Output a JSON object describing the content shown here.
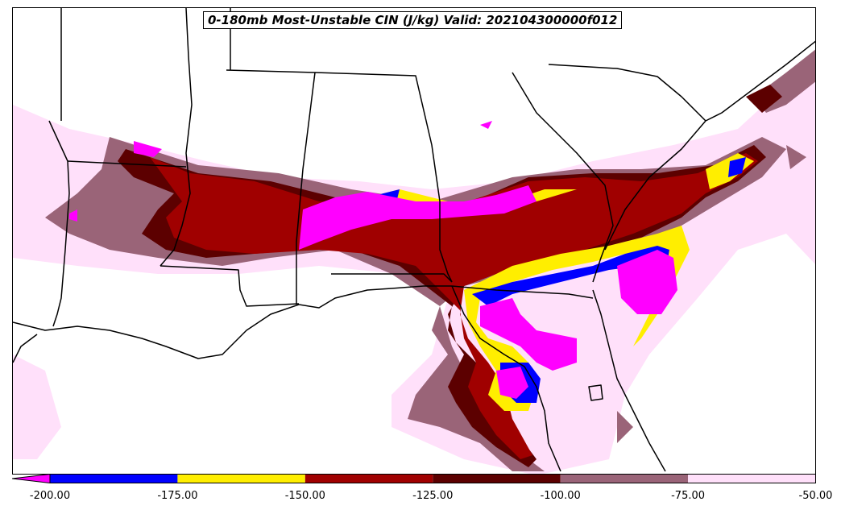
{
  "title": "0-180mb Most-Unstable CIN (J/kg) Valid: 202104300000f012",
  "colorbar": {
    "ticks": [
      "-200.00",
      "-175.00",
      "-150.00",
      "-125.00",
      "-100.00",
      "-75.00",
      "-50.00"
    ],
    "bins": [
      {
        "from": -225,
        "to": -200,
        "color": "#ff00ff"
      },
      {
        "from": -200,
        "to": -175,
        "color": "#0000ff"
      },
      {
        "from": -175,
        "to": -150,
        "color": "#ffee00"
      },
      {
        "from": -150,
        "to": -125,
        "color": "#a00000"
      },
      {
        "from": -125,
        "to": -100,
        "color": "#5c0000"
      },
      {
        "from": -100,
        "to": -75,
        "color": "#9a6478"
      },
      {
        "from": -75,
        "to": -50,
        "color": "#ffe0fa"
      }
    ]
  },
  "colors": {
    "lightpink": "#ffe0fa",
    "mauve": "#9a6478",
    "darkred": "#5c0000",
    "red": "#a00000",
    "yellow": "#ffee00",
    "blue": "#0000ff",
    "magenta": "#ff00ff",
    "boundary": "#000000"
  }
}
